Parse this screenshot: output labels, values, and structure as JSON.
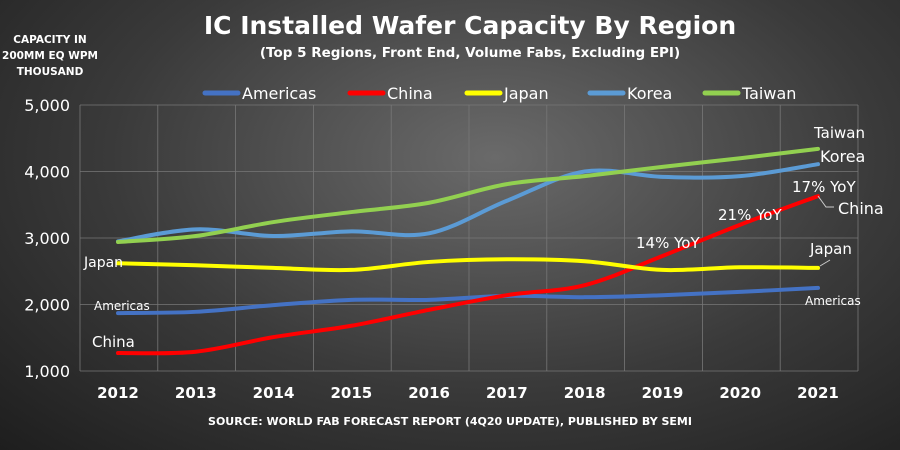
{
  "chart_data": {
    "type": "line",
    "title": "IC Installed Wafer Capacity By Region",
    "subtitle": "(Top 5 Regions, Front End, Volume Fabs, Excluding EPI)",
    "ylabel": [
      "CAPACITY IN",
      "200MM EQ WPM",
      "THOUSAND"
    ],
    "source": "SOURCE: WORLD FAB FORECAST REPORT (4Q20 UPDATE), PUBLISHED BY SEMI",
    "x": [
      "2012",
      "2013",
      "2014",
      "2015",
      "2016",
      "2017",
      "2018",
      "2019",
      "2020",
      "2021"
    ],
    "ylim": [
      1000,
      5000
    ],
    "yticks": [
      "1,000",
      "2,000",
      "3,000",
      "4,000",
      "5,000"
    ],
    "grid": true,
    "legend": "top",
    "series": [
      {
        "name": "Americas",
        "color": "#4472c4",
        "values": [
          1870,
          1890,
          1990,
          2070,
          2070,
          2130,
          2110,
          2140,
          2190,
          2250
        ],
        "label_start": "Americas",
        "label_end": "Americas"
      },
      {
        "name": "China",
        "color": "#ff0000",
        "values": [
          1270,
          1290,
          1510,
          1680,
          1920,
          2140,
          2290,
          2730,
          3200,
          3630
        ],
        "label_start": "China",
        "label_end": "China"
      },
      {
        "name": "Japan",
        "color": "#ffff00",
        "values": [
          2620,
          2590,
          2550,
          2520,
          2640,
          2680,
          2650,
          2520,
          2560,
          2550
        ],
        "label_start": "Japan",
        "label_end": "Japan"
      },
      {
        "name": "Korea",
        "color": "#5b9bd5",
        "values": [
          2950,
          3130,
          3030,
          3100,
          3070,
          3560,
          4000,
          3920,
          3930,
          4110
        ],
        "label_end": "Korea"
      },
      {
        "name": "Taiwan",
        "color": "#92d050",
        "values": [
          2940,
          3030,
          3240,
          3390,
          3530,
          3810,
          3930,
          4070,
          4200,
          4340
        ],
        "label_end": "Taiwan"
      }
    ],
    "annotations": [
      "14% YoY",
      "21% YoY",
      "17% YoY"
    ]
  }
}
